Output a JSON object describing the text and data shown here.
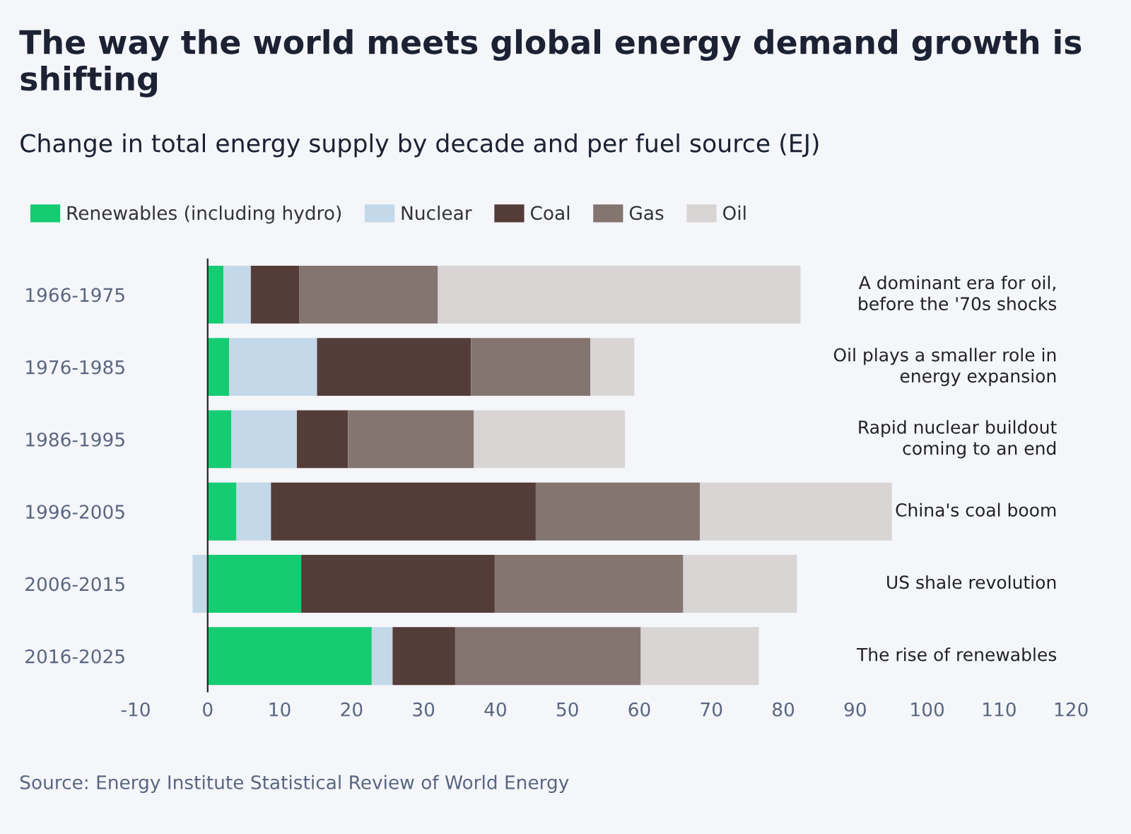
{
  "chart_data": {
    "type": "bar",
    "orientation": "horizontal",
    "stacked": true,
    "title": "The way the world meets global energy demand growth is shifting",
    "subtitle": "Change in total energy supply by decade and per fuel source (EJ)",
    "categories": [
      "1966-1975",
      "1976-1985",
      "1986-1995",
      "1996-2005",
      "2006-2015",
      "2016-2025"
    ],
    "series": [
      {
        "name": "Renewables (including hydro)",
        "color": "#16cc72",
        "values": [
          2.2,
          3.0,
          3.3,
          4.0,
          13.0,
          22.8
        ]
      },
      {
        "name": "Nuclear",
        "color": "#c3d8e8",
        "values": [
          3.8,
          12.2,
          9.1,
          4.8,
          -2.1,
          2.9
        ]
      },
      {
        "name": "Coal",
        "color": "#543d39",
        "values": [
          6.7,
          21.4,
          7.1,
          36.8,
          26.9,
          8.7
        ]
      },
      {
        "name": "Gas",
        "color": "#847571",
        "values": [
          19.3,
          16.6,
          17.5,
          22.8,
          26.2,
          25.8
        ]
      },
      {
        "name": "Oil",
        "color": "#d9d5d4",
        "values": [
          50.4,
          6.1,
          21.0,
          26.7,
          15.8,
          16.4
        ]
      }
    ],
    "xlim": [
      -10,
      120
    ],
    "xticks": [
      -10,
      0,
      10,
      20,
      30,
      40,
      50,
      60,
      70,
      80,
      90,
      100,
      110,
      120
    ],
    "ref_lines": [
      {
        "axis": "x",
        "value": 0,
        "color": "#222222"
      }
    ],
    "grid": false,
    "legend": "top",
    "annotations": [
      "A dominant era for oil,\nbefore the '70s shocks",
      "Oil plays a smaller role in\nenergy expansion",
      "Rapid nuclear buildout\ncoming to an end",
      "China's coal boom",
      "US shale revolution",
      "The rise of renewables",
      "Source: Energy Institute Statistical Review of World Energy"
    ]
  }
}
